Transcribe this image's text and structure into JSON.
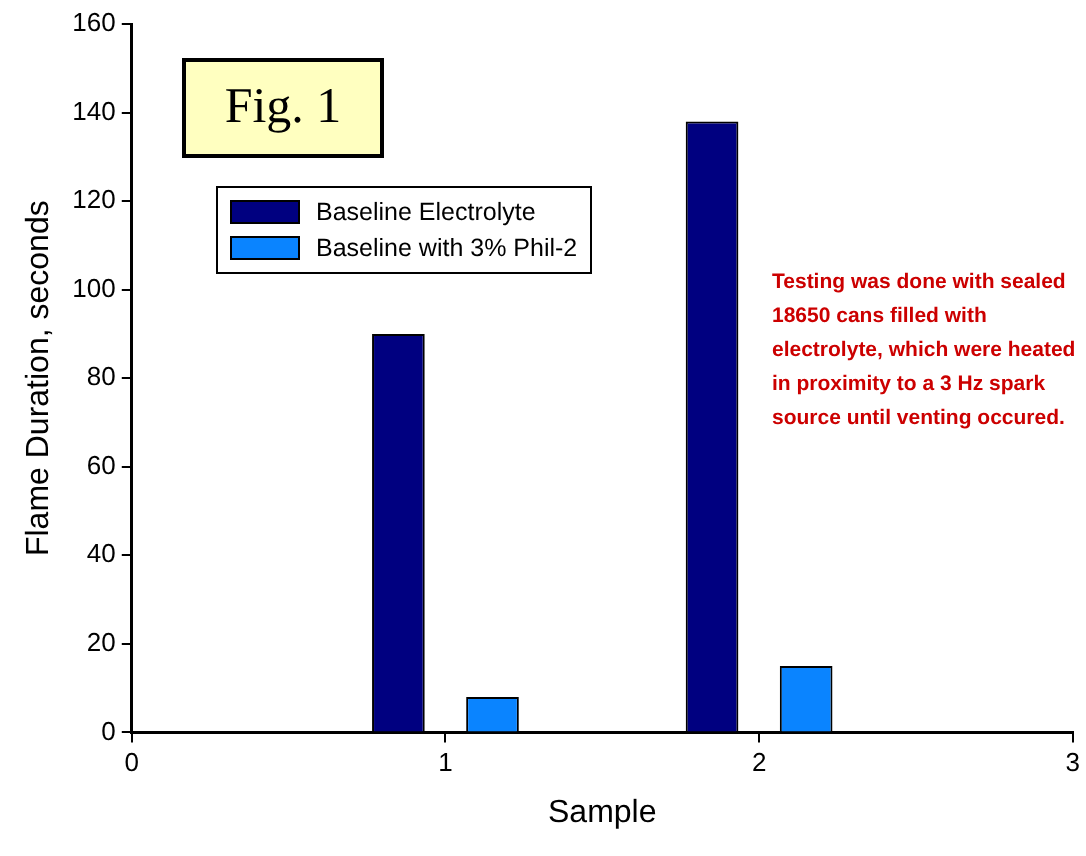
{
  "chart_data": {
    "type": "bar",
    "xlabel": "Sample",
    "ylabel": "Flame Duration, seconds",
    "x": [
      1,
      2
    ],
    "series": [
      {
        "name": "Baseline Electrolyte",
        "color": "#000080",
        "values": [
          90,
          138
        ]
      },
      {
        "name": "Baseline with 3% Phil-2",
        "color": "#0a84ff",
        "values": [
          8,
          15
        ]
      }
    ],
    "xlim": [
      0,
      3
    ],
    "xticks": [
      0,
      1,
      2,
      3
    ],
    "ylim": [
      0,
      160
    ],
    "yticks": [
      0,
      20,
      40,
      60,
      80,
      100,
      120,
      140,
      160
    ],
    "grid": false,
    "legend": "top left",
    "annotations": [
      "Fig. 1",
      "Testing was done with sealed 18650 cans filled with electrolyte, which were heated in proximity to a 3 Hz spark source until venting occured."
    ]
  }
}
